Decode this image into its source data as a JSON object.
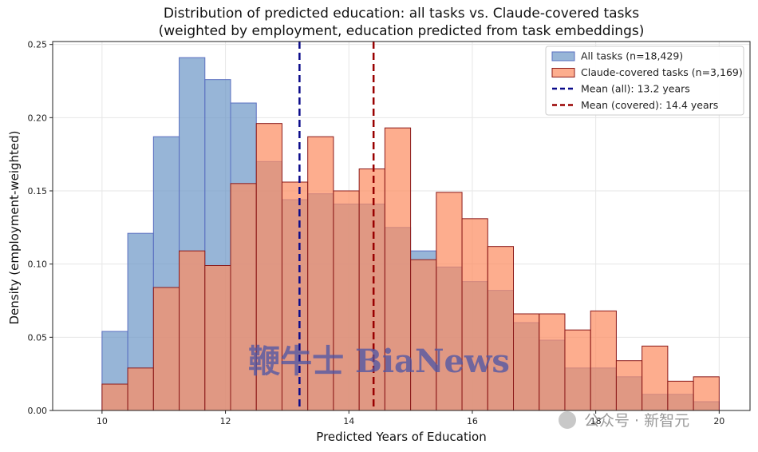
{
  "chart_data": {
    "type": "bar",
    "title": "Distribution of predicted education: all tasks vs. Claude-covered tasks",
    "subtitle": "(weighted by employment, education predicted from task embeddings)",
    "xlabel": "Predicted Years of Education",
    "ylabel": "Density (employment-weighted)",
    "xlim": [
      9.2,
      20.5
    ],
    "ylim": [
      0,
      0.252
    ],
    "x_ticks": [
      10,
      12,
      14,
      16,
      18,
      20
    ],
    "y_ticks": [
      0.0,
      0.05,
      0.1,
      0.15,
      0.2,
      0.25
    ],
    "x_tick_labels": [
      "10",
      "12",
      "14",
      "16",
      "18",
      "20"
    ],
    "y_tick_labels": [
      "0.00",
      "0.05",
      "0.10",
      "0.15",
      "0.20",
      "0.25"
    ],
    "grid": true,
    "legend_position": "top-right",
    "bin_edges": [
      10.0,
      10.4167,
      10.8333,
      11.25,
      11.6667,
      12.0833,
      12.5,
      12.9167,
      13.3333,
      13.75,
      14.1667,
      14.5833,
      15.0,
      15.4167,
      15.8333,
      16.25,
      16.6667,
      17.0833,
      17.5,
      17.9167,
      18.3333,
      18.75,
      19.1667,
      19.5833,
      20.0
    ],
    "series": [
      {
        "name": "All tasks (n=18,429)",
        "color": "#6f98c8",
        "edge_color": "#5a6fc0",
        "values": [
          0.054,
          0.121,
          0.187,
          0.241,
          0.226,
          0.21,
          0.17,
          0.144,
          0.148,
          0.141,
          0.141,
          0.125,
          0.109,
          0.098,
          0.088,
          0.082,
          0.06,
          0.048,
          0.029,
          0.029,
          0.023,
          0.011,
          0.011,
          0.006
        ]
      },
      {
        "name": "Claude-covered tasks (n=3,169)",
        "color": "#fc8d62",
        "edge_color": "#8b1a1a",
        "values": [
          0.018,
          0.029,
          0.084,
          0.109,
          0.099,
          0.155,
          0.196,
          0.156,
          0.187,
          0.15,
          0.165,
          0.193,
          0.103,
          0.149,
          0.131,
          0.112,
          0.066,
          0.066,
          0.055,
          0.068,
          0.034,
          0.044,
          0.02,
          0.023
        ]
      }
    ],
    "mean_lines": [
      {
        "label": "Mean (all): 13.2 years",
        "value": 13.2,
        "color": "#0a0a8a"
      },
      {
        "label": "Mean (covered): 14.4 years",
        "value": 14.4,
        "color": "#990000"
      }
    ]
  },
  "watermark": {
    "text": "鞭牛士 BiaNews"
  },
  "credit": {
    "text": "公众号 · 新智元"
  }
}
